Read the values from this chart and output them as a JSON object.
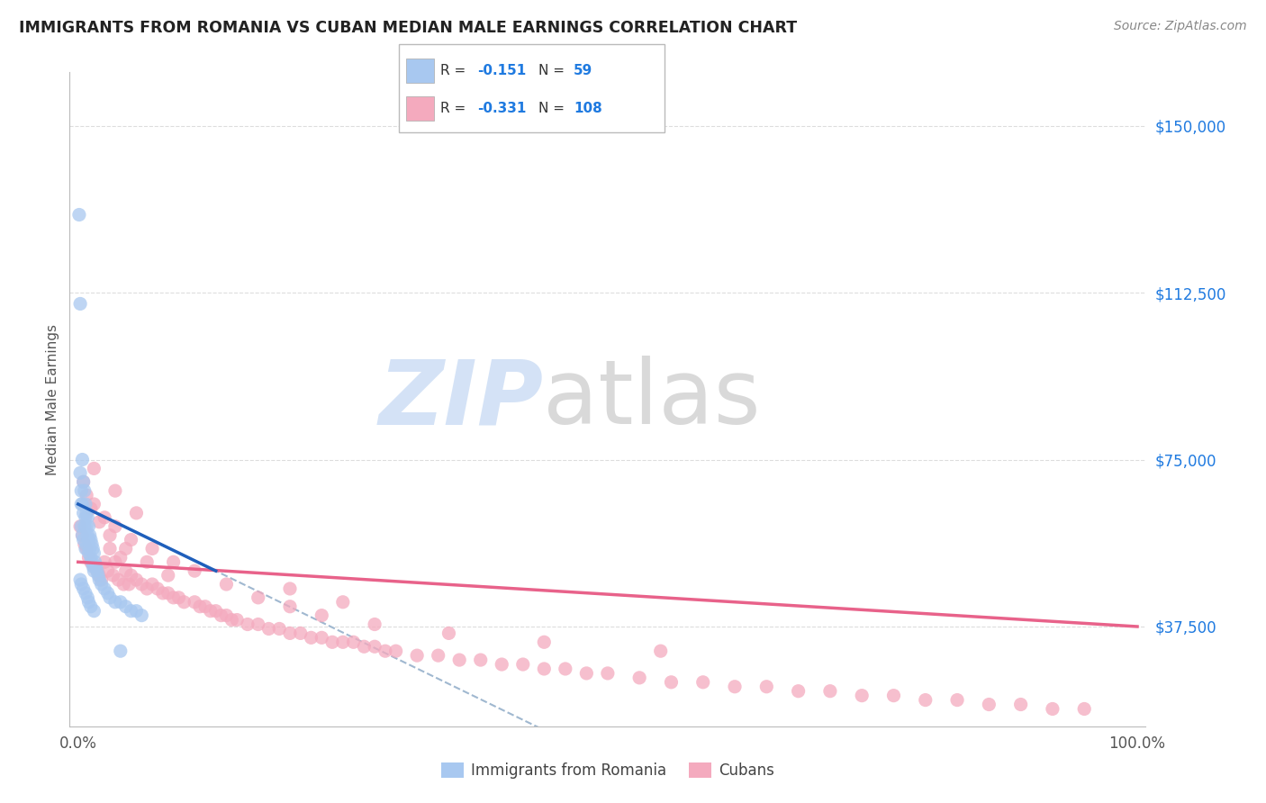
{
  "title": "IMMIGRANTS FROM ROMANIA VS CUBAN MEDIAN MALE EARNINGS CORRELATION CHART",
  "source": "Source: ZipAtlas.com",
  "ylabel": "Median Male Earnings",
  "yticks": [
    37500,
    75000,
    112500,
    150000
  ],
  "ytick_labels": [
    "$37,500",
    "$75,000",
    "$112,500",
    "$150,000"
  ],
  "ymin": 15000,
  "ymax": 162000,
  "xmin": -0.008,
  "xmax": 1.008,
  "romania_color": "#A8C8F0",
  "cuba_color": "#F4AABE",
  "romania_line_color": "#1F5FBB",
  "cuba_line_color": "#E8628A",
  "dashed_line_color": "#A0B8D0",
  "background_color": "#FFFFFF",
  "grid_color": "#DDDDDD",
  "romania_R": -0.151,
  "romania_N": 59,
  "cuba_R": -0.331,
  "cuba_N": 108,
  "romania_x": [
    0.001,
    0.002,
    0.002,
    0.003,
    0.003,
    0.003,
    0.004,
    0.004,
    0.004,
    0.005,
    0.005,
    0.005,
    0.006,
    0.006,
    0.007,
    0.007,
    0.007,
    0.008,
    0.008,
    0.008,
    0.009,
    0.009,
    0.01,
    0.01,
    0.01,
    0.011,
    0.011,
    0.012,
    0.012,
    0.013,
    0.013,
    0.014,
    0.014,
    0.015,
    0.015,
    0.016,
    0.017,
    0.018,
    0.019,
    0.02,
    0.022,
    0.025,
    0.028,
    0.03,
    0.035,
    0.04,
    0.045,
    0.05,
    0.055,
    0.06,
    0.002,
    0.003,
    0.005,
    0.007,
    0.009,
    0.01,
    0.012,
    0.015,
    0.04
  ],
  "romania_y": [
    130000,
    110000,
    72000,
    68000,
    65000,
    60000,
    75000,
    65000,
    58000,
    70000,
    63000,
    57000,
    68000,
    60000,
    65000,
    62000,
    55000,
    63000,
    60000,
    56000,
    62000,
    58000,
    60000,
    57000,
    54000,
    58000,
    55000,
    57000,
    53000,
    56000,
    52000,
    55000,
    51000,
    54000,
    50000,
    52000,
    51000,
    50000,
    49000,
    48000,
    47000,
    46000,
    45000,
    44000,
    43000,
    43000,
    42000,
    41000,
    41000,
    40000,
    48000,
    47000,
    46000,
    45000,
    44000,
    43000,
    42000,
    41000,
    32000
  ],
  "cuba_x": [
    0.002,
    0.004,
    0.006,
    0.008,
    0.01,
    0.012,
    0.015,
    0.018,
    0.02,
    0.022,
    0.025,
    0.028,
    0.03,
    0.033,
    0.035,
    0.038,
    0.04,
    0.043,
    0.045,
    0.048,
    0.05,
    0.055,
    0.06,
    0.065,
    0.07,
    0.075,
    0.08,
    0.085,
    0.09,
    0.095,
    0.1,
    0.11,
    0.115,
    0.12,
    0.125,
    0.13,
    0.135,
    0.14,
    0.145,
    0.15,
    0.16,
    0.17,
    0.18,
    0.19,
    0.2,
    0.21,
    0.22,
    0.23,
    0.24,
    0.25,
    0.26,
    0.27,
    0.28,
    0.29,
    0.3,
    0.32,
    0.34,
    0.36,
    0.38,
    0.4,
    0.42,
    0.44,
    0.46,
    0.48,
    0.5,
    0.53,
    0.56,
    0.59,
    0.62,
    0.65,
    0.68,
    0.71,
    0.74,
    0.77,
    0.8,
    0.83,
    0.86,
    0.89,
    0.92,
    0.95,
    0.015,
    0.025,
    0.035,
    0.05,
    0.07,
    0.09,
    0.11,
    0.14,
    0.17,
    0.2,
    0.005,
    0.008,
    0.012,
    0.02,
    0.03,
    0.045,
    0.065,
    0.085,
    0.2,
    0.25,
    0.015,
    0.035,
    0.055,
    0.23,
    0.28,
    0.35,
    0.44,
    0.55
  ],
  "cuba_y": [
    60000,
    58000,
    56000,
    55000,
    53000,
    52000,
    51000,
    50000,
    49000,
    48000,
    52000,
    50000,
    55000,
    49000,
    52000,
    48000,
    53000,
    47000,
    50000,
    47000,
    49000,
    48000,
    47000,
    46000,
    47000,
    46000,
    45000,
    45000,
    44000,
    44000,
    43000,
    43000,
    42000,
    42000,
    41000,
    41000,
    40000,
    40000,
    39000,
    39000,
    38000,
    38000,
    37000,
    37000,
    36000,
    36000,
    35000,
    35000,
    34000,
    34000,
    34000,
    33000,
    33000,
    32000,
    32000,
    31000,
    31000,
    30000,
    30000,
    29000,
    29000,
    28000,
    28000,
    27000,
    27000,
    26000,
    25000,
    25000,
    24000,
    24000,
    23000,
    23000,
    22000,
    22000,
    21000,
    21000,
    20000,
    20000,
    19000,
    19000,
    65000,
    62000,
    60000,
    57000,
    55000,
    52000,
    50000,
    47000,
    44000,
    42000,
    70000,
    67000,
    64000,
    61000,
    58000,
    55000,
    52000,
    49000,
    46000,
    43000,
    73000,
    68000,
    63000,
    40000,
    38000,
    36000,
    34000,
    32000
  ]
}
